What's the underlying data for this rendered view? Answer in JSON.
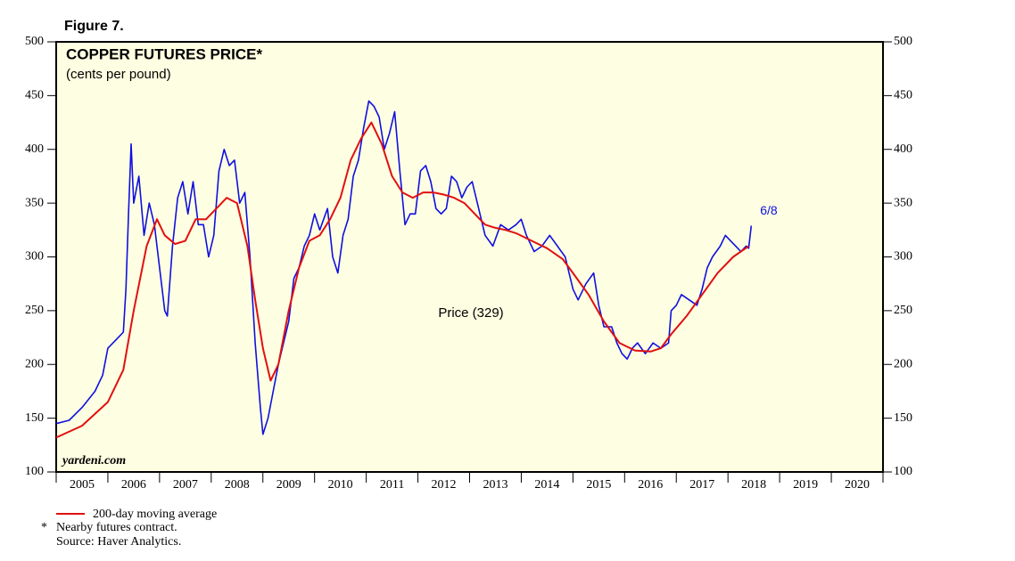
{
  "chart_data": {
    "type": "line",
    "figure_label": "Figure 7.",
    "title": "COPPER FUTURES PRICE*",
    "subtitle": "(cents per pound)",
    "watermark": "yardeni.com",
    "annotation": "6/8",
    "footnote_marker": "*",
    "footnote": "Nearby futures contract.",
    "source": "Source: Haver Analytics.",
    "xlim": [
      2005,
      2021
    ],
    "xticks": [
      2005,
      2006,
      2007,
      2008,
      2009,
      2010,
      2011,
      2012,
      2013,
      2014,
      2015,
      2016,
      2017,
      2018,
      2019,
      2020
    ],
    "ylim": [
      100,
      500
    ],
    "yticks": [
      100,
      150,
      200,
      250,
      300,
      350,
      400,
      450,
      500
    ],
    "background": "#fefee2",
    "series": [
      {
        "name": "Price (329)",
        "color": "#1010e0",
        "x": [
          2005.0,
          2005.25,
          2005.5,
          2005.75,
          2005.9,
          2006.0,
          2006.2,
          2006.3,
          2006.35,
          2006.4,
          2006.45,
          2006.5,
          2006.6,
          2006.7,
          2006.8,
          2006.9,
          2007.0,
          2007.1,
          2007.15,
          2007.25,
          2007.35,
          2007.45,
          2007.55,
          2007.65,
          2007.75,
          2007.85,
          2007.95,
          2008.05,
          2008.15,
          2008.25,
          2008.35,
          2008.45,
          2008.55,
          2008.65,
          2008.75,
          2008.85,
          2008.95,
          2009.0,
          2009.1,
          2009.2,
          2009.3,
          2009.4,
          2009.5,
          2009.6,
          2009.7,
          2009.8,
          2009.9,
          2010.0,
          2010.1,
          2010.25,
          2010.35,
          2010.45,
          2010.55,
          2010.65,
          2010.75,
          2010.85,
          2010.95,
          2011.05,
          2011.15,
          2011.25,
          2011.35,
          2011.45,
          2011.55,
          2011.65,
          2011.75,
          2011.85,
          2011.95,
          2012.05,
          2012.15,
          2012.25,
          2012.35,
          2012.45,
          2012.55,
          2012.65,
          2012.75,
          2012.85,
          2012.95,
          2013.05,
          2013.15,
          2013.3,
          2013.45,
          2013.6,
          2013.75,
          2013.9,
          2014.0,
          2014.1,
          2014.25,
          2014.4,
          2014.55,
          2014.7,
          2014.85,
          2015.0,
          2015.1,
          2015.25,
          2015.4,
          2015.5,
          2015.6,
          2015.75,
          2015.85,
          2015.95,
          2016.05,
          2016.15,
          2016.25,
          2016.4,
          2016.55,
          2016.7,
          2016.85,
          2016.9,
          2017.0,
          2017.1,
          2017.25,
          2017.4,
          2017.5,
          2017.6,
          2017.7,
          2017.85,
          2017.95,
          2018.05,
          2018.15,
          2018.25,
          2018.35,
          2018.4,
          2018.45
        ],
        "values": [
          145,
          148,
          160,
          175,
          190,
          215,
          225,
          230,
          270,
          340,
          405,
          350,
          375,
          320,
          350,
          330,
          290,
          250,
          245,
          310,
          355,
          370,
          340,
          370,
          330,
          330,
          300,
          320,
          380,
          400,
          385,
          390,
          350,
          360,
          300,
          220,
          160,
          135,
          150,
          175,
          200,
          220,
          240,
          280,
          290,
          310,
          320,
          340,
          325,
          345,
          300,
          285,
          320,
          335,
          375,
          390,
          420,
          445,
          440,
          430,
          400,
          415,
          435,
          380,
          330,
          340,
          340,
          380,
          385,
          370,
          345,
          340,
          345,
          375,
          370,
          355,
          365,
          370,
          350,
          320,
          310,
          330,
          325,
          330,
          335,
          320,
          305,
          310,
          320,
          310,
          300,
          270,
          260,
          275,
          285,
          255,
          235,
          235,
          220,
          210,
          205,
          215,
          220,
          210,
          220,
          215,
          220,
          250,
          255,
          265,
          260,
          255,
          270,
          290,
          300,
          310,
          320,
          315,
          310,
          305,
          310,
          308,
          329
        ]
      },
      {
        "name": "200-day moving average",
        "color": "#e01010",
        "x": [
          2005.0,
          2005.5,
          2006.0,
          2006.3,
          2006.5,
          2006.75,
          2006.95,
          2007.1,
          2007.3,
          2007.5,
          2007.7,
          2007.9,
          2008.1,
          2008.3,
          2008.5,
          2008.7,
          2008.85,
          2009.0,
          2009.15,
          2009.3,
          2009.5,
          2009.7,
          2009.9,
          2010.1,
          2010.3,
          2010.5,
          2010.7,
          2010.9,
          2011.1,
          2011.3,
          2011.5,
          2011.7,
          2011.9,
          2012.1,
          2012.3,
          2012.5,
          2012.7,
          2012.9,
          2013.1,
          2013.3,
          2013.5,
          2013.7,
          2013.9,
          2014.2,
          2014.5,
          2014.8,
          2015.0,
          2015.3,
          2015.6,
          2015.9,
          2016.2,
          2016.5,
          2016.7,
          2016.9,
          2017.2,
          2017.5,
          2017.8,
          2018.1,
          2018.4
        ],
        "values": [
          132,
          143,
          165,
          195,
          250,
          310,
          335,
          320,
          312,
          315,
          335,
          335,
          345,
          355,
          350,
          310,
          260,
          215,
          185,
          200,
          250,
          290,
          315,
          320,
          335,
          355,
          390,
          410,
          425,
          405,
          375,
          360,
          355,
          360,
          360,
          358,
          355,
          350,
          340,
          330,
          327,
          325,
          322,
          315,
          308,
          298,
          285,
          265,
          240,
          220,
          213,
          212,
          215,
          228,
          245,
          265,
          285,
          300,
          310
        ]
      }
    ]
  }
}
